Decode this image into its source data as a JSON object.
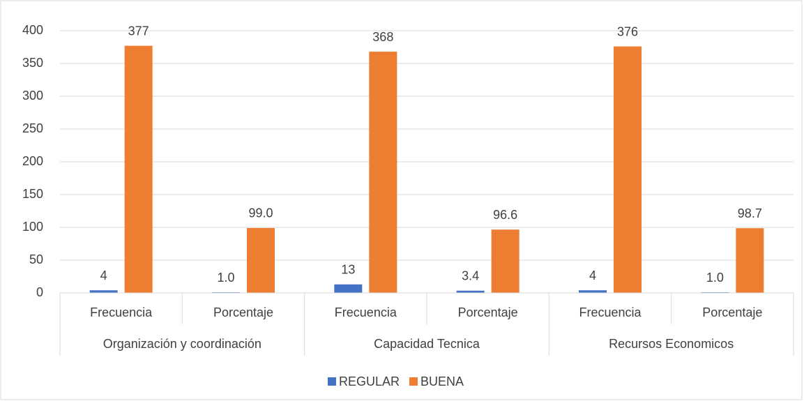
{
  "chart_data": {
    "type": "bar",
    "categories": [
      "Frecuencia",
      "Porcentaje",
      "Frecuencia",
      "Porcentaje",
      "Frecuencia",
      "Porcentaje"
    ],
    "groups": [
      "Organización y coordinación",
      "Capacidad Tecnica",
      "Recursos Economicos"
    ],
    "series": [
      {
        "name": "REGULAR",
        "color": "#4472c4",
        "values": [
          4,
          1.0,
          13,
          3.4,
          4,
          1.0
        ],
        "value_labels": [
          "4",
          "1.0",
          "13",
          "3.4",
          "4",
          "1.0"
        ]
      },
      {
        "name": "BUENA",
        "color": "#ed7d31",
        "values": [
          377,
          99.0,
          368,
          96.6,
          376,
          98.7
        ],
        "value_labels": [
          "377",
          "99.0",
          "368",
          "96.6",
          "376",
          "98.7"
        ]
      }
    ],
    "ylim": [
      0,
      400
    ],
    "yticks": [
      0,
      50,
      100,
      150,
      200,
      250,
      300,
      350,
      400
    ],
    "grid": true,
    "legend": "bottom"
  }
}
